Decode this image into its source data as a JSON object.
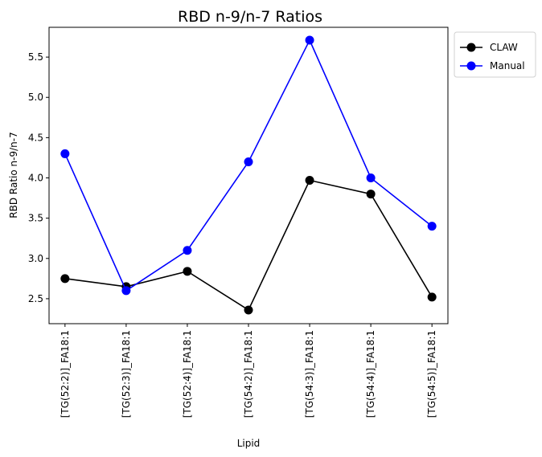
{
  "chart_data": {
    "type": "line",
    "title": "RBD n-9/n-7 Ratios",
    "xlabel": "Lipid",
    "ylabel": "RBD Ratio n-9/n-7",
    "categories": [
      "[TG(52:2)]_FA18:1",
      "[TG(52:3)]_FA18:1",
      "[TG(52:4)]_FA18:1",
      "[TG(54:2)]_FA18:1",
      "[TG(54:3)]_FA18:1",
      "[TG(54:4)]_FA18:1",
      "[TG(54:5)]_FA18:1"
    ],
    "series": [
      {
        "name": "CLAW",
        "color": "#000000",
        "values": [
          2.75,
          2.65,
          2.84,
          2.36,
          3.97,
          3.8,
          2.52
        ]
      },
      {
        "name": "Manual",
        "color": "#0000ff",
        "values": [
          4.3,
          2.6,
          3.1,
          4.2,
          5.71,
          4.0,
          3.4
        ]
      }
    ],
    "yticks": [
      "2.5",
      "3.0",
      "3.5",
      "4.0",
      "4.5",
      "5.0",
      "5.5"
    ],
    "ylim": [
      2.19,
      5.87
    ],
    "grid": false,
    "legend": "outside-top-right"
  }
}
